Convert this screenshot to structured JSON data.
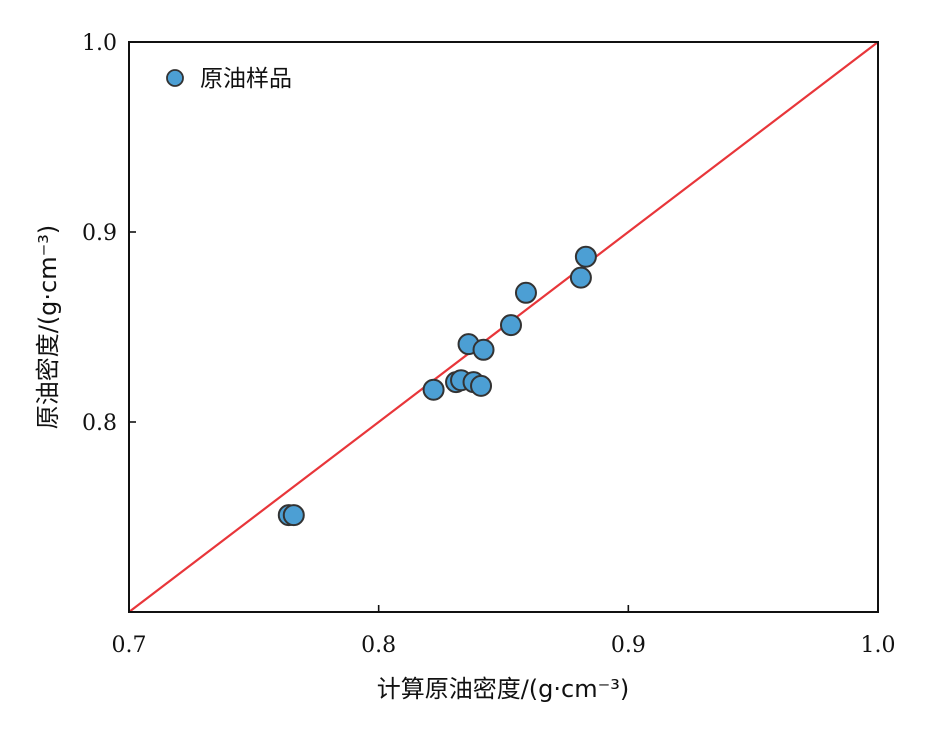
{
  "chart_data": {
    "type": "scatter",
    "title": "",
    "xlabel": "计算原油密度/(g·cm⁻³)",
    "ylabel": "原油密度/(g·cm⁻³)",
    "xlim": [
      0.7,
      1.0
    ],
    "ylim": [
      0.7,
      1.0
    ],
    "x_ticks": [
      "0.7",
      "0.8",
      "0.9",
      "1.0"
    ],
    "y_ticks": [
      "0.8",
      "0.9",
      "1.0"
    ],
    "y_tick_values": [
      0.8,
      0.9,
      1.0
    ],
    "x_tick_values": [
      0.7,
      0.8,
      0.9,
      1.0
    ],
    "grid": false,
    "legend": {
      "placement": "top-left",
      "entries": [
        "原油样品"
      ]
    },
    "series": [
      {
        "name": "原油样品",
        "color": "#4c9fd4",
        "points": [
          [
            0.764,
            0.751
          ],
          [
            0.766,
            0.751
          ],
          [
            0.822,
            0.817
          ],
          [
            0.831,
            0.821
          ],
          [
            0.833,
            0.822
          ],
          [
            0.838,
            0.821
          ],
          [
            0.841,
            0.819
          ],
          [
            0.836,
            0.841
          ],
          [
            0.842,
            0.838
          ],
          [
            0.853,
            0.851
          ],
          [
            0.859,
            0.868
          ],
          [
            0.881,
            0.876
          ],
          [
            0.883,
            0.887
          ]
        ]
      }
    ],
    "reference_line": {
      "from": [
        0.7,
        0.7
      ],
      "to": [
        1.0,
        1.0
      ],
      "color": "#e8363a"
    }
  }
}
